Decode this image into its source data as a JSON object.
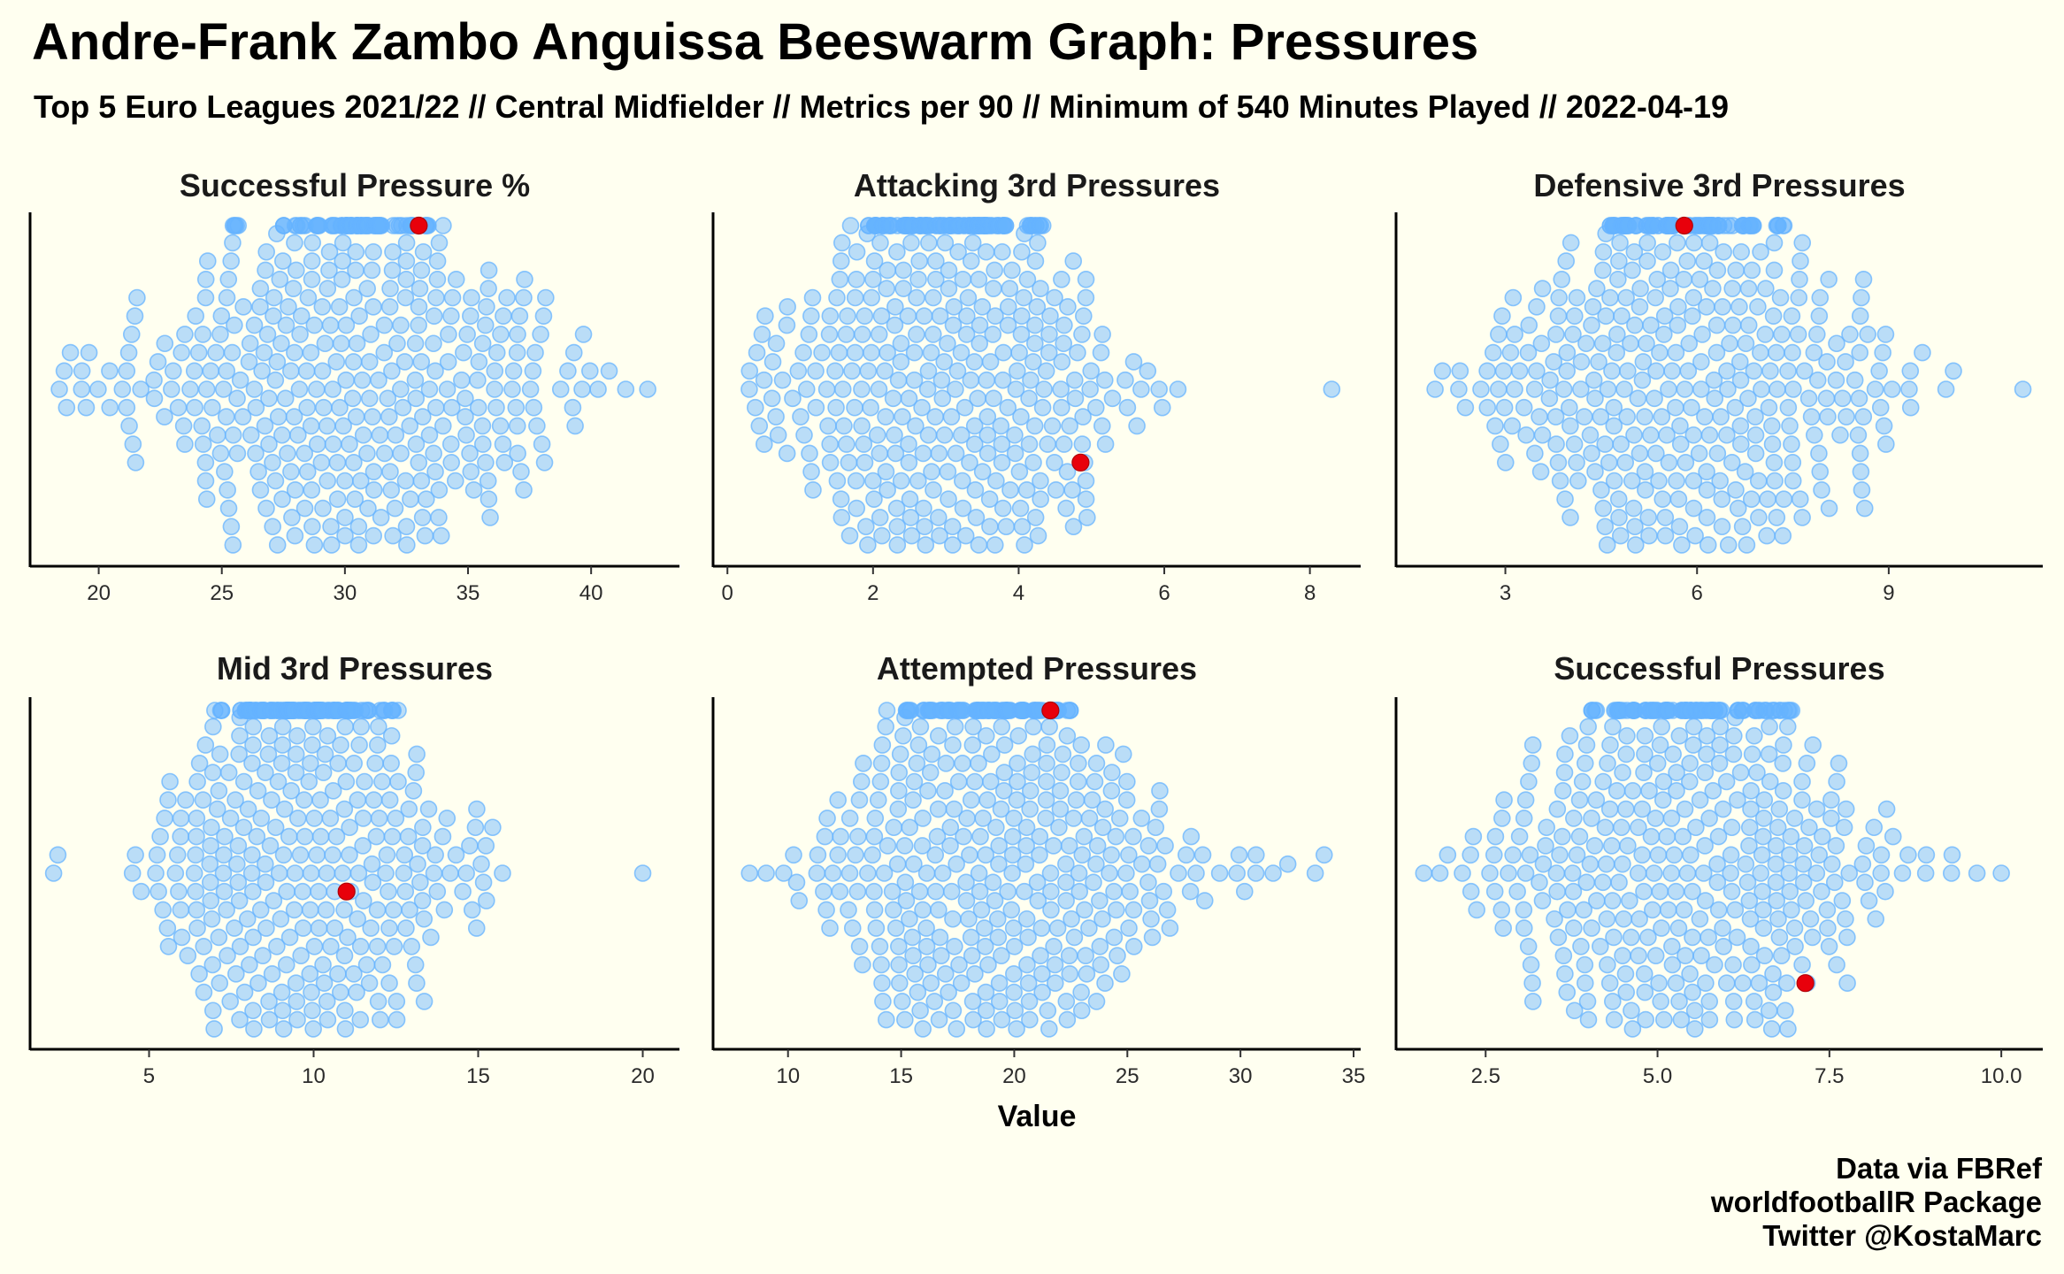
{
  "title": "Andre-Frank Zambo Anguissa Beeswarm Graph: Pressures",
  "subtitle": "Top 5 Euro Leagues 2021/22 // Central Midfielder // Metrics per 90 // Minimum of 540 Minutes Played // 2022-04-19",
  "xlabel": "Value",
  "caption": [
    "Data via FBRef",
    "worldfootballR Package",
    "Twitter @KostaMarc"
  ],
  "colors": {
    "background": "#fffff0",
    "points": "#66b3ff",
    "highlight": "#e8000b"
  },
  "chart_data": [
    {
      "type": "scatter",
      "title": "Successful Pressure %",
      "xlim": [
        17.5,
        43.3
      ],
      "xticks": [
        "20",
        "25",
        "30",
        "35",
        "40"
      ],
      "tick_values": [
        20,
        25,
        30,
        35,
        40
      ],
      "distribution": {
        "count": 440,
        "center": 30.3,
        "spread": 4.3,
        "min": 18.4,
        "max": 42.3
      },
      "highlight": {
        "label": "Andre-Frank Zambo Anguissa",
        "x": 33.0
      }
    },
    {
      "type": "scatter",
      "title": "Attacking 3rd Pressures",
      "xlim": [
        -0.1,
        8.6
      ],
      "xticks": [
        "0",
        "2",
        "4",
        "6",
        "8"
      ],
      "tick_values": [
        0,
        2,
        4,
        6,
        8
      ],
      "distribution": {
        "count": 440,
        "center": 3.0,
        "spread": 1.25,
        "min": 0.3,
        "max": 8.3
      },
      "highlight": {
        "label": "Andre-Frank Zambo Anguissa",
        "x": 4.85
      }
    },
    {
      "type": "scatter",
      "title": "Defensive 3rd Pressures",
      "xlim": [
        1.4,
        11.3
      ],
      "xticks": [
        "3",
        "6",
        "9"
      ],
      "tick_values": [
        3,
        6,
        9
      ],
      "distribution": {
        "count": 440,
        "center": 5.8,
        "spread": 1.6,
        "min": 1.9,
        "max": 11.1
      },
      "highlight": {
        "label": "Andre-Frank Zambo Anguissa",
        "x": 5.8
      }
    },
    {
      "type": "scatter",
      "title": "Mid 3rd Pressures",
      "xlim": [
        1.6,
        20.9
      ],
      "xticks": [
        "5",
        "10",
        "15",
        "20"
      ],
      "tick_values": [
        5,
        10,
        15,
        20
      ],
      "distribution": {
        "count": 440,
        "center": 9.6,
        "spread": 2.2,
        "min": 2.1,
        "max": 20.0
      },
      "highlight": {
        "label": "Andre-Frank Zambo Anguissa",
        "x": 11.0
      }
    },
    {
      "type": "scatter",
      "title": "Attempted Pressures",
      "xlim": [
        7.0,
        35.0
      ],
      "xticks": [
        "10",
        "15",
        "20",
        "25",
        "30",
        "35"
      ],
      "tick_values": [
        10,
        15,
        20,
        25,
        30,
        35
      ],
      "distribution": {
        "count": 440,
        "center": 19.5,
        "spread": 4.3,
        "min": 8.3,
        "max": 33.7
      },
      "highlight": {
        "label": "Andre-Frank Zambo Anguissa",
        "x": 21.6
      }
    },
    {
      "type": "scatter",
      "title": "Successful Pressures",
      "xlim": [
        1.3,
        10.5
      ],
      "xticks": [
        "2.5",
        "5.0",
        "7.5",
        "10.0"
      ],
      "tick_values": [
        2.5,
        5.0,
        7.5,
        10.0
      ],
      "distribution": {
        "count": 440,
        "center": 5.4,
        "spread": 1.4,
        "min": 1.6,
        "max": 10.0
      },
      "highlight": {
        "label": "Andre-Frank Zambo Anguissa",
        "x": 7.15
      }
    }
  ]
}
